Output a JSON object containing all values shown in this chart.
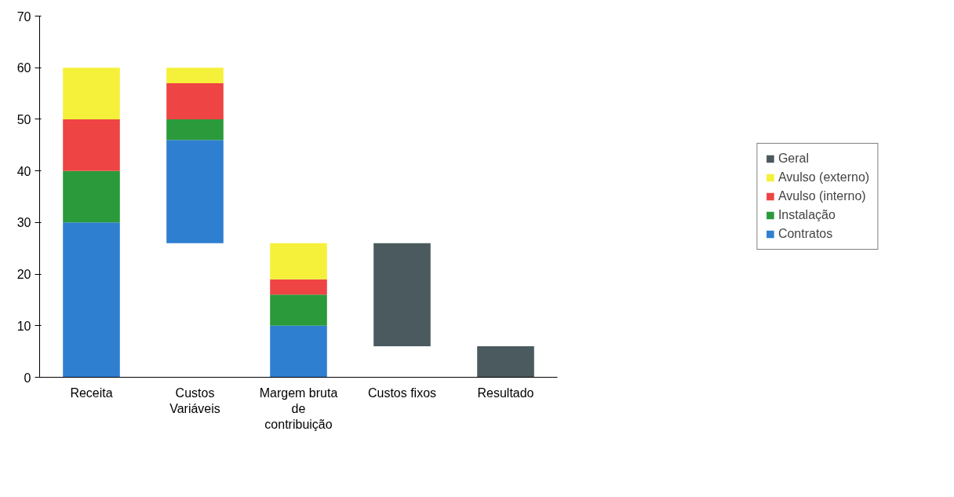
{
  "chart_data": {
    "type": "bar",
    "stacked": false,
    "categories": [
      "Receita",
      "Custos Variáveis",
      "Margem bruta de contribuição",
      "Custos fixos",
      "Resultado"
    ],
    "series": [
      {
        "name": "Contratos",
        "color": "#2f7fd0",
        "values": [
          30,
          20,
          10,
          null,
          null
        ],
        "base": [
          0,
          26,
          0,
          null,
          null
        ]
      },
      {
        "name": "Instalação",
        "color": "#2a9a3a",
        "values": [
          10,
          4,
          6,
          null,
          null
        ],
        "base": [
          30,
          46,
          10,
          null,
          null
        ]
      },
      {
        "name": "Avulso (interno)",
        "color": "#ee4444",
        "values": [
          10,
          7,
          3,
          null,
          null
        ],
        "base": [
          40,
          50,
          16,
          null,
          null
        ]
      },
      {
        "name": "Avulso (externo)",
        "color": "#f5f03a",
        "values": [
          10,
          3,
          7,
          null,
          null
        ],
        "base": [
          50,
          57,
          19,
          null,
          null
        ]
      },
      {
        "name": "Geral",
        "color": "#4a5a5e",
        "values": [
          null,
          null,
          null,
          20,
          6
        ],
        "base": [
          null,
          null,
          null,
          6,
          0
        ]
      }
    ],
    "ylim": [
      0,
      70
    ],
    "yticks": [
      0,
      10,
      20,
      30,
      40,
      50,
      60,
      70
    ],
    "grid": false,
    "legend": "right"
  }
}
